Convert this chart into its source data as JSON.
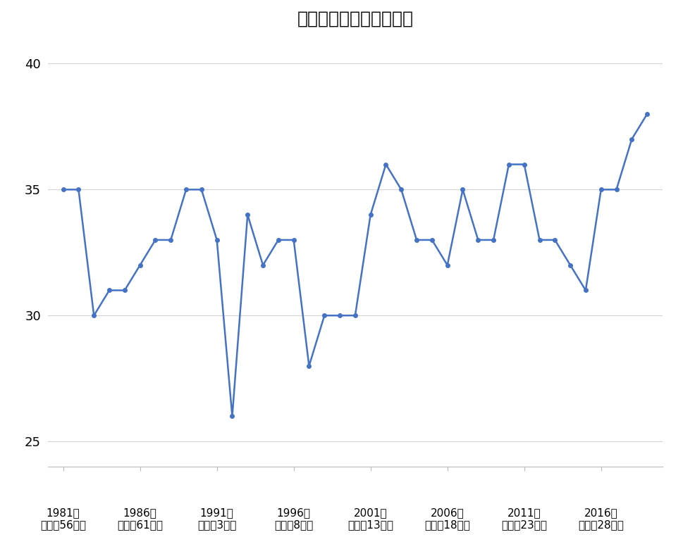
{
  "title": "宅建試験の合格点の推移",
  "years": [
    1981,
    1982,
    1983,
    1984,
    1985,
    1986,
    1987,
    1988,
    1989,
    1990,
    1991,
    1992,
    1993,
    1994,
    1995,
    1996,
    1997,
    1998,
    1999,
    2000,
    2001,
    2002,
    2003,
    2004,
    2005,
    2006,
    2007,
    2008,
    2009,
    2010,
    2011,
    2012,
    2013,
    2014,
    2015,
    2016,
    2017,
    2018,
    2019
  ],
  "scores": [
    35,
    35,
    30,
    31,
    31,
    32,
    33,
    33,
    35,
    35,
    33,
    26,
    34,
    32,
    33,
    33,
    28,
    30,
    30,
    30,
    34,
    36,
    35,
    33,
    33,
    32,
    35,
    33,
    33,
    36,
    36,
    33,
    33,
    32,
    31,
    35,
    35,
    37,
    38
  ],
  "xtick_positions": [
    1981,
    1986,
    1991,
    1996,
    2001,
    2006,
    2011,
    2016
  ],
  "xtick_labels_line1": [
    "1981年",
    "1986年",
    "1991年",
    "1996年",
    "2001年",
    "2006年",
    "2011年",
    "2016年"
  ],
  "xtick_labels_line2": [
    "（昭和56年）",
    "（昭和61年）",
    "（平成3年）",
    "（平成8年）",
    "（平成13年）",
    "（平成18年）",
    "（平成23年）",
    "（平成28年）"
  ],
  "ytick_positions": [
    25,
    30,
    35,
    40
  ],
  "ytick_labels": [
    "25",
    "30",
    "35",
    "40"
  ],
  "ylim": [
    24,
    41
  ],
  "xlim": [
    1980,
    2020
  ],
  "line_color": "#4472C4",
  "marker": "o",
  "marker_size": 4,
  "line_width": 1.8,
  "background_color": "#ffffff",
  "grid_color": "#d3d3d3",
  "title_fontsize": 18,
  "tick_fontsize": 11,
  "ytick_fontsize": 13
}
